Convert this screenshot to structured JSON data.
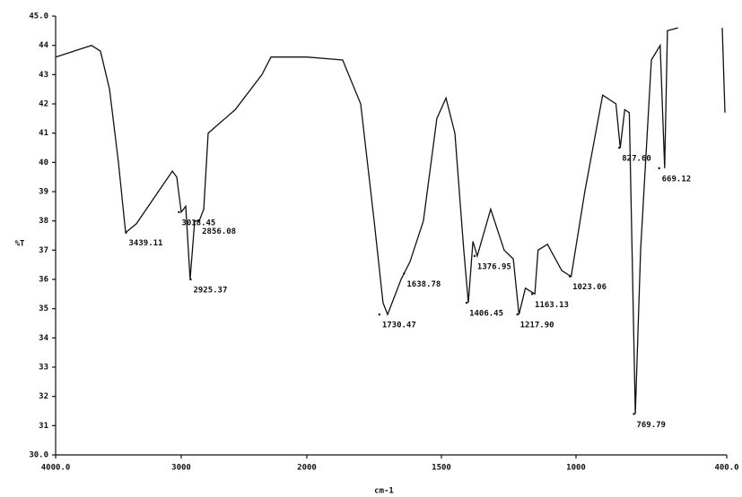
{
  "chart_data": {
    "type": "line",
    "xlabel": "cm-1",
    "ylabel": "%T",
    "xlim": [
      4000,
      400
    ],
    "ylim": [
      30,
      45
    ],
    "xticks": [
      {
        "value": 4000,
        "label": "4000.0"
      },
      3000,
      2000,
      1500,
      1000,
      {
        "value": 400,
        "label": "400.0"
      }
    ],
    "yticks": [
      {
        "value": 30,
        "label": "30.0"
      },
      31,
      32,
      33,
      34,
      35,
      36,
      37,
      38,
      39,
      40,
      41,
      42,
      43,
      44,
      {
        "value": 45,
        "label": "45.0"
      }
    ],
    "series": [
      {
        "color": "#111111",
        "x": [
          4000,
          3714,
          3643,
          3571,
          3500,
          3443,
          3357,
          3214,
          3071,
          3036,
          3000,
          2964,
          2929,
          2893,
          2857,
          2821,
          2786,
          2571,
          2357,
          2286,
          2000,
          1867,
          1800,
          1750,
          1717,
          1700,
          1650,
          1617,
          1567,
          1517,
          1483,
          1450,
          1417,
          1400,
          1383,
          1367,
          1317,
          1267,
          1233,
          1212,
          1188,
          1153,
          1141,
          1106,
          1053,
          1018,
          965,
          894,
          841,
          824,
          806,
          788,
          764,
          743,
          700,
          665,
          647,
          636,
          594,
          520,
          418,
          407
        ],
        "values": [
          43.6,
          44.0,
          43.8,
          42.5,
          40,
          37.6,
          37.9,
          38.8,
          39.7,
          39.5,
          38.3,
          38.5,
          36.0,
          38.0,
          38.0,
          38.4,
          41.0,
          41.8,
          43.0,
          43.6,
          43.6,
          43.5,
          42,
          38,
          35.2,
          34.8,
          36,
          36.6,
          38,
          41.5,
          42.2,
          41,
          37,
          35.2,
          37.3,
          36.8,
          38.4,
          37.0,
          36.7,
          34.8,
          35.7,
          35.5,
          37.0,
          37.2,
          36.3,
          36.1,
          39,
          42.3,
          42,
          40.5,
          41.8,
          41.7,
          31.4,
          37,
          43.5,
          44,
          39.8,
          44.5,
          44.6,
          null,
          44.6,
          41.7
        ]
      }
    ],
    "annotations": [
      {
        "x": 3439.11,
        "y": 37.6,
        "label": "3439.11"
      },
      {
        "x": 3018.45,
        "y": 38.3,
        "label": "3018.45"
      },
      {
        "x": 2925.37,
        "y": 36.0,
        "label": "2925.37"
      },
      {
        "x": 2856.08,
        "y": 38.0,
        "label": "2856.08"
      },
      {
        "x": 1730.47,
        "y": 34.8,
        "label": "1730.47"
      },
      {
        "x": 1638.78,
        "y": 36.2,
        "label": "1638.78"
      },
      {
        "x": 1406.45,
        "y": 35.2,
        "label": "1406.45"
      },
      {
        "x": 1376.95,
        "y": 36.8,
        "label": "1376.95"
      },
      {
        "x": 1217.9,
        "y": 34.8,
        "label": "1217.90"
      },
      {
        "x": 1163.13,
        "y": 35.5,
        "label": "1163.13"
      },
      {
        "x": 1023.06,
        "y": 36.1,
        "label": "1023.06"
      },
      {
        "x": 827.6,
        "y": 40.5,
        "label": "827.60"
      },
      {
        "x": 769.79,
        "y": 31.4,
        "label": "769.79"
      },
      {
        "x": 669.12,
        "y": 39.8,
        "label": "669.12"
      }
    ]
  }
}
